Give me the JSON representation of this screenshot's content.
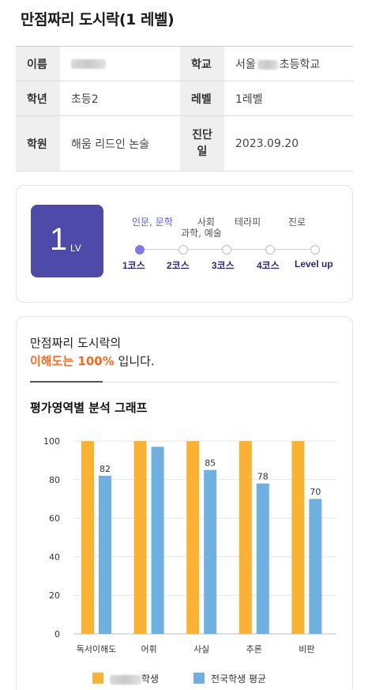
{
  "page": {
    "title": "만점짜리 도시락(1 레벨)"
  },
  "info": {
    "name_label": "이름",
    "school_label": "학교",
    "school_prefix": "서울",
    "school_suffix": "초등학교",
    "grade_label": "학년",
    "grade_value": "초등2",
    "level_label": "레벨",
    "level_value": "1레벨",
    "academy_label": "학원",
    "academy_value": "해움 리드인 논술",
    "diag_label_1": "진단",
    "diag_label_2": "일",
    "diag_value": "2023.09.20"
  },
  "level_card": {
    "level_number": "1",
    "level_unit": "LV",
    "stages": [
      {
        "label_1": "인문, 문학",
        "label_2": "",
        "course": "1코스",
        "active": true
      },
      {
        "label_1": "사회",
        "label_2": "과학, 예술",
        "course": "2코스",
        "active": false
      },
      {
        "label_1": "테라피",
        "label_2": "",
        "course": "3코스",
        "active": false
      },
      {
        "label_1": "진로",
        "label_2": "",
        "course": "4코스",
        "active": false
      },
      {
        "label_1": "",
        "label_2": "",
        "course": "Level up",
        "active": false
      }
    ]
  },
  "result": {
    "line1": "만점짜리 도시락의",
    "highlight": "이해도는 100%",
    "line2_rest": " 입니다.",
    "graph_title": "평가영역별 분석 그래프"
  },
  "legend": {
    "student_suffix": "학생",
    "national_label": "전국학생 평균"
  },
  "colors": {
    "student": "#f9b233",
    "national": "#6fb0e0",
    "accent": "#f26b1d",
    "level_box": "#4e4aa9"
  },
  "chart_data": {
    "type": "bar",
    "categories": [
      "독서이해도",
      "어휘",
      "사실",
      "추론",
      "비판"
    ],
    "series": [
      {
        "name": "학생",
        "values": [
          100,
          100,
          100,
          100,
          100
        ]
      },
      {
        "name": "전국학생 평균",
        "values": [
          82,
          97,
          85,
          78,
          70
        ]
      }
    ],
    "data_labels": [
      "82",
      "",
      "85",
      "78",
      "70"
    ],
    "ylim": [
      0,
      100
    ],
    "yticks": [
      0,
      20,
      40,
      60,
      80,
      100
    ],
    "grid": true,
    "legend_position": "bottom"
  }
}
